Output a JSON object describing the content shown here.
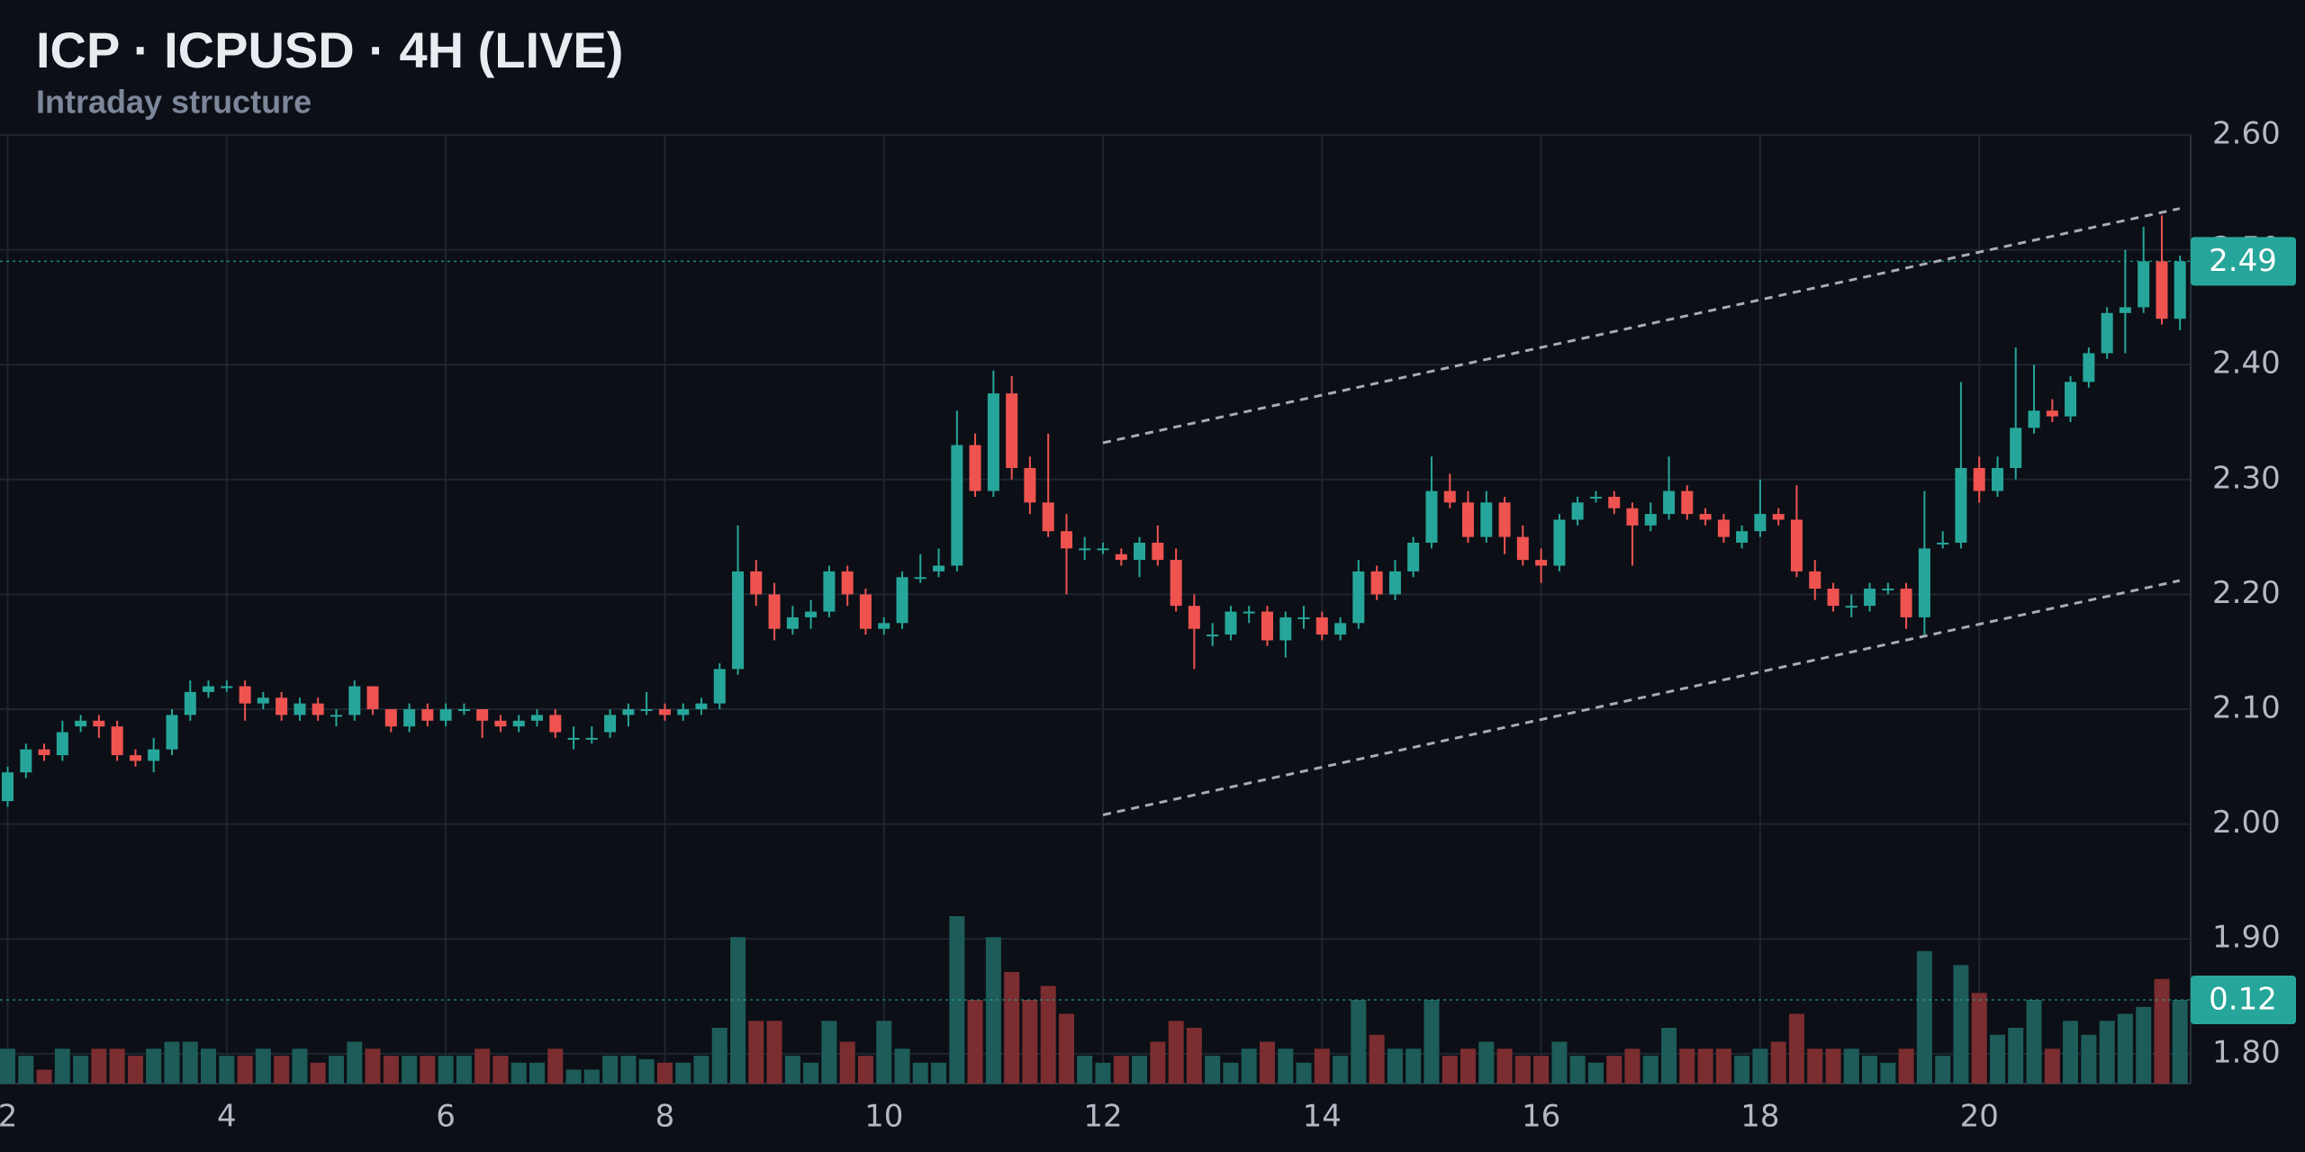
{
  "chart_data": {
    "type": "candlestick",
    "title": "ICP · ICPUSD · 4H (LIVE)",
    "subtitle": "Intraday structure",
    "up_color": "#26a69a",
    "down_color": "#ef5350",
    "volume_up_color": "#1d5c58",
    "volume_down_color": "#7b2d2f",
    "grid": true,
    "xlim": [
      1.93,
      21.93
    ],
    "xticks": [
      2,
      4,
      6,
      8,
      10,
      12,
      14,
      16,
      18,
      20
    ],
    "ylim": [
      1.774,
      2.6
    ],
    "yticks": [
      {
        "value": 1.8,
        "label": "1.80"
      },
      {
        "value": 1.9,
        "label": "1.90"
      },
      {
        "value": 2.0,
        "label": "2.00"
      },
      {
        "value": 2.1,
        "label": "2.10"
      },
      {
        "value": 2.2,
        "label": "2.20"
      },
      {
        "value": 2.3,
        "label": "2.30"
      },
      {
        "value": 2.4,
        "label": "2.40"
      },
      {
        "value": 2.5,
        "label": "2.50"
      },
      {
        "value": 2.6,
        "label": "2.60"
      }
    ],
    "y2lim": [
      0,
      1.36
    ],
    "x": [
      2,
      2.167,
      2.333,
      2.5,
      2.667,
      2.833,
      3,
      3.167,
      3.333,
      3.5,
      3.667,
      3.833,
      4,
      4.167,
      4.333,
      4.5,
      4.667,
      4.833,
      5,
      5.167,
      5.333,
      5.5,
      5.667,
      5.833,
      6,
      6.167,
      6.333,
      6.5,
      6.667,
      6.833,
      7,
      7.167,
      7.333,
      7.5,
      7.667,
      7.833,
      8,
      8.167,
      8.333,
      8.5,
      8.667,
      8.833,
      9,
      9.167,
      9.333,
      9.5,
      9.667,
      9.833,
      10,
      10.167,
      10.333,
      10.5,
      10.667,
      10.833,
      11,
      11.167,
      11.333,
      11.5,
      11.667,
      11.833,
      12,
      12.167,
      12.333,
      12.5,
      12.667,
      12.833,
      13,
      13.167,
      13.333,
      13.5,
      13.667,
      13.833,
      14,
      14.167,
      14.333,
      14.5,
      14.667,
      14.833,
      15,
      15.167,
      15.333,
      15.5,
      15.667,
      15.833,
      16,
      16.167,
      16.333,
      16.5,
      16.667,
      16.833,
      17,
      17.167,
      17.333,
      17.5,
      17.667,
      17.833,
      18,
      18.167,
      18.333,
      18.5,
      18.667,
      18.833,
      19,
      19.167,
      19.333,
      19.5,
      19.667,
      19.833,
      20,
      20.167,
      20.333,
      20.5,
      20.667,
      20.833,
      21,
      21.167,
      21.333,
      21.5,
      21.667,
      21.833
    ],
    "open": [
      2.02,
      2.045,
      2.065,
      2.06,
      2.085,
      2.09,
      2.085,
      2.06,
      2.055,
      2.065,
      2.095,
      2.115,
      2.12,
      2.12,
      2.105,
      2.11,
      2.095,
      2.105,
      2.095,
      2.095,
      2.12,
      2.1,
      2.085,
      2.1,
      2.09,
      2.1,
      2.1,
      2.09,
      2.085,
      2.09,
      2.095,
      2.075,
      2.075,
      2.08,
      2.095,
      2.1,
      2.1,
      2.095,
      2.1,
      2.105,
      2.135,
      2.22,
      2.2,
      2.17,
      2.18,
      2.185,
      2.22,
      2.2,
      2.17,
      2.175,
      2.215,
      2.22,
      2.225,
      2.33,
      2.29,
      2.375,
      2.31,
      2.28,
      2.255,
      2.24,
      2.24,
      2.235,
      2.23,
      2.245,
      2.23,
      2.19,
      2.165,
      2.165,
      2.185,
      2.185,
      2.16,
      2.18,
      2.18,
      2.165,
      2.175,
      2.22,
      2.2,
      2.22,
      2.245,
      2.29,
      2.28,
      2.25,
      2.28,
      2.25,
      2.23,
      2.225,
      2.265,
      2.285,
      2.285,
      2.275,
      2.26,
      2.27,
      2.29,
      2.27,
      2.265,
      2.245,
      2.255,
      2.27,
      2.265,
      2.22,
      2.205,
      2.19,
      2.19,
      2.205,
      2.205,
      2.18,
      2.245,
      2.245,
      2.31,
      2.29,
      2.31,
      2.345,
      2.36,
      2.355,
      2.385,
      2.41,
      2.445,
      2.45,
      2.49,
      2.44
    ],
    "high": [
      2.05,
      2.07,
      2.07,
      2.09,
      2.095,
      2.095,
      2.09,
      2.065,
      2.075,
      2.1,
      2.125,
      2.125,
      2.125,
      2.125,
      2.115,
      2.115,
      2.11,
      2.11,
      2.1,
      2.125,
      2.12,
      2.1,
      2.105,
      2.105,
      2.105,
      2.105,
      2.1,
      2.095,
      2.095,
      2.1,
      2.1,
      2.085,
      2.085,
      2.1,
      2.105,
      2.115,
      2.105,
      2.105,
      2.11,
      2.14,
      2.26,
      2.23,
      2.21,
      2.19,
      2.195,
      2.225,
      2.225,
      2.205,
      2.18,
      2.22,
      2.235,
      2.24,
      2.36,
      2.34,
      2.395,
      2.39,
      2.32,
      2.34,
      2.27,
      2.25,
      2.245,
      2.24,
      2.25,
      2.26,
      2.24,
      2.2,
      2.175,
      2.19,
      2.19,
      2.19,
      2.185,
      2.19,
      2.185,
      2.18,
      2.23,
      2.225,
      2.23,
      2.25,
      2.32,
      2.305,
      2.29,
      2.29,
      2.285,
      2.26,
      2.24,
      2.27,
      2.285,
      2.29,
      2.29,
      2.28,
      2.28,
      2.32,
      2.295,
      2.275,
      2.27,
      2.26,
      2.3,
      2.275,
      2.295,
      2.23,
      2.21,
      2.2,
      2.21,
      2.21,
      2.21,
      2.29,
      2.255,
      2.385,
      2.32,
      2.32,
      2.415,
      2.4,
      2.37,
      2.39,
      2.415,
      2.45,
      2.5,
      2.52,
      2.53,
      2.495
    ],
    "low": [
      2.015,
      2.04,
      2.055,
      2.055,
      2.08,
      2.075,
      2.055,
      2.05,
      2.045,
      2.06,
      2.09,
      2.11,
      2.115,
      2.09,
      2.1,
      2.09,
      2.09,
      2.09,
      2.085,
      2.09,
      2.095,
      2.08,
      2.08,
      2.085,
      2.085,
      2.095,
      2.075,
      2.08,
      2.08,
      2.085,
      2.075,
      2.065,
      2.07,
      2.075,
      2.085,
      2.095,
      2.09,
      2.09,
      2.095,
      2.1,
      2.13,
      2.19,
      2.16,
      2.165,
      2.17,
      2.18,
      2.19,
      2.165,
      2.165,
      2.17,
      2.21,
      2.215,
      2.22,
      2.285,
      2.285,
      2.3,
      2.27,
      2.25,
      2.2,
      2.23,
      2.235,
      2.225,
      2.215,
      2.225,
      2.185,
      2.135,
      2.155,
      2.16,
      2.175,
      2.155,
      2.145,
      2.17,
      2.16,
      2.16,
      2.17,
      2.195,
      2.195,
      2.215,
      2.24,
      2.275,
      2.245,
      2.245,
      2.235,
      2.225,
      2.21,
      2.22,
      2.26,
      2.28,
      2.27,
      2.225,
      2.255,
      2.265,
      2.265,
      2.26,
      2.245,
      2.24,
      2.25,
      2.26,
      2.215,
      2.195,
      2.185,
      2.18,
      2.185,
      2.2,
      2.17,
      2.165,
      2.24,
      2.24,
      2.28,
      2.285,
      2.3,
      2.34,
      2.35,
      2.35,
      2.38,
      2.405,
      2.41,
      2.445,
      2.435,
      2.43
    ],
    "close": [
      2.045,
      2.065,
      2.06,
      2.08,
      2.09,
      2.085,
      2.06,
      2.055,
      2.065,
      2.095,
      2.115,
      2.12,
      2.12,
      2.105,
      2.11,
      2.095,
      2.105,
      2.095,
      2.095,
      2.12,
      2.1,
      2.085,
      2.1,
      2.09,
      2.1,
      2.1,
      2.09,
      2.085,
      2.09,
      2.095,
      2.08,
      2.075,
      2.075,
      2.095,
      2.1,
      2.1,
      2.095,
      2.1,
      2.105,
      2.135,
      2.22,
      2.2,
      2.17,
      2.18,
      2.185,
      2.22,
      2.2,
      2.17,
      2.175,
      2.215,
      2.215,
      2.225,
      2.33,
      2.29,
      2.375,
      2.31,
      2.28,
      2.255,
      2.24,
      2.24,
      2.24,
      2.23,
      2.245,
      2.23,
      2.19,
      2.17,
      2.165,
      2.185,
      2.185,
      2.16,
      2.18,
      2.18,
      2.165,
      2.175,
      2.22,
      2.2,
      2.22,
      2.245,
      2.29,
      2.28,
      2.25,
      2.28,
      2.25,
      2.23,
      2.225,
      2.265,
      2.28,
      2.285,
      2.275,
      2.26,
      2.27,
      2.29,
      2.27,
      2.265,
      2.25,
      2.255,
      2.27,
      2.265,
      2.22,
      2.205,
      2.19,
      2.19,
      2.205,
      2.205,
      2.18,
      2.24,
      2.245,
      2.31,
      2.29,
      2.31,
      2.345,
      2.36,
      2.355,
      2.385,
      2.41,
      2.445,
      2.45,
      2.49,
      2.44,
      2.49
    ],
    "volume": [
      0.05,
      0.04,
      0.02,
      0.05,
      0.04,
      0.05,
      0.05,
      0.04,
      0.05,
      0.06,
      0.06,
      0.05,
      0.04,
      0.04,
      0.05,
      0.04,
      0.05,
      0.03,
      0.04,
      0.06,
      0.05,
      0.04,
      0.04,
      0.04,
      0.04,
      0.04,
      0.05,
      0.04,
      0.03,
      0.03,
      0.05,
      0.02,
      0.02,
      0.04,
      0.04,
      0.035,
      0.03,
      0.03,
      0.04,
      0.08,
      0.21,
      0.09,
      0.09,
      0.04,
      0.03,
      0.09,
      0.06,
      0.04,
      0.09,
      0.05,
      0.03,
      0.03,
      0.24,
      0.12,
      0.21,
      0.16,
      0.12,
      0.14,
      0.1,
      0.04,
      0.03,
      0.04,
      0.04,
      0.06,
      0.09,
      0.08,
      0.04,
      0.03,
      0.05,
      0.06,
      0.05,
      0.03,
      0.05,
      0.04,
      0.12,
      0.07,
      0.05,
      0.05,
      0.12,
      0.04,
      0.05,
      0.06,
      0.05,
      0.04,
      0.04,
      0.06,
      0.04,
      0.03,
      0.04,
      0.05,
      0.04,
      0.08,
      0.05,
      0.05,
      0.05,
      0.04,
      0.05,
      0.06,
      0.1,
      0.05,
      0.05,
      0.05,
      0.04,
      0.03,
      0.05,
      0.19,
      0.04,
      0.17,
      0.13,
      0.07,
      0.08,
      0.12,
      0.05,
      0.09,
      0.07,
      0.09,
      0.1,
      0.11,
      0.15,
      0.12
    ],
    "trendlines": [
      {
        "x": [
          12,
          21.83
        ],
        "y": [
          2.332,
          2.536
        ]
      },
      {
        "x": [
          12,
          21.83
        ],
        "y": [
          2.008,
          2.212
        ]
      }
    ]
  }
}
